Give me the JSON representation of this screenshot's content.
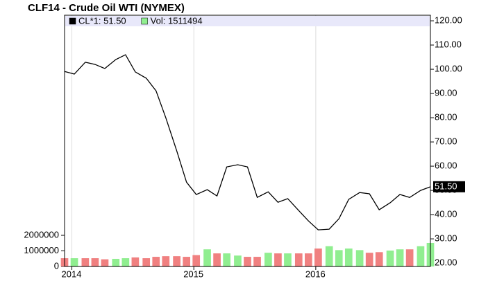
{
  "chart_data": {
    "type": "line",
    "title": "CLF14 - Crude Oil WTI (NYMEX)",
    "x": [
      2013.94,
      2014.02,
      2014.11,
      2014.19,
      2014.27,
      2014.36,
      2014.44,
      2014.52,
      2014.61,
      2014.69,
      2014.77,
      2014.86,
      2014.94,
      2015.02,
      2015.11,
      2015.19,
      2015.27,
      2015.36,
      2015.44,
      2015.52,
      2015.61,
      2015.69,
      2015.77,
      2015.86,
      2015.94,
      2016.02,
      2016.11,
      2016.19,
      2016.27,
      2016.36,
      2016.44,
      2016.52,
      2016.61,
      2016.69,
      2016.77,
      2016.86,
      2016.94
    ],
    "xlim": [
      2013.94,
      2016.94
    ],
    "xticks": [
      2014,
      2015,
      2016
    ],
    "ylim": [
      18.6,
      122.3
    ],
    "yticks": [
      {
        "value": 20,
        "label": "20.00"
      },
      {
        "value": 30,
        "label": "30.00"
      },
      {
        "value": 40,
        "label": "40.00"
      },
      {
        "value": 50,
        "label": "50.00"
      },
      {
        "value": 60,
        "label": "60.00"
      },
      {
        "value": 70,
        "label": "70.00"
      },
      {
        "value": 80,
        "label": "80.00"
      },
      {
        "value": 90,
        "label": "90.00"
      },
      {
        "value": 100,
        "label": "100.00"
      },
      {
        "value": 110,
        "label": "110.00"
      },
      {
        "value": 120,
        "label": "120.00"
      }
    ],
    "y2lim": [
      0,
      16130000
    ],
    "y2ticks": [
      0,
      1000000,
      2000000
    ],
    "last_label": {
      "value": 51.5,
      "label": "51.50"
    },
    "series": [
      {
        "name": "CL*1: 51.50",
        "color": "#000000",
        "values": [
          99.1,
          98.0,
          102.9,
          102.0,
          100.3,
          104.0,
          106.0,
          98.9,
          96.3,
          91.1,
          80.0,
          66.3,
          53.4,
          48.3,
          50.3,
          47.7,
          59.7,
          60.6,
          59.7,
          47.1,
          49.4,
          45.1,
          46.6,
          41.7,
          37.4,
          33.7,
          34.0,
          38.3,
          46.3,
          49.1,
          48.6,
          42.0,
          44.9,
          48.3,
          47.1,
          50.0,
          51.5
        ]
      },
      {
        "name": "Vol: 1511494",
        "color": "#90ee90",
        "axis": "y2",
        "type": "bar",
        "values": [
          530000,
          530000,
          530000,
          530000,
          460000,
          490000,
          530000,
          580000,
          530000,
          620000,
          660000,
          660000,
          620000,
          730000,
          1100000,
          840000,
          840000,
          700000,
          620000,
          620000,
          880000,
          840000,
          840000,
          840000,
          840000,
          1150000,
          1300000,
          1050000,
          1150000,
          1050000,
          880000,
          920000,
          1020000,
          1100000,
          1100000,
          1300000,
          1511494
        ],
        "colors": [
          "#f08080",
          "#90ee90",
          "#f08080",
          "#f08080",
          "#f08080",
          "#90ee90",
          "#90ee90",
          "#f08080",
          "#f08080",
          "#f08080",
          "#f08080",
          "#f08080",
          "#f08080",
          "#f08080",
          "#90ee90",
          "#f08080",
          "#90ee90",
          "#90ee90",
          "#f08080",
          "#f08080",
          "#90ee90",
          "#f08080",
          "#90ee90",
          "#f08080",
          "#f08080",
          "#f08080",
          "#90ee90",
          "#90ee90",
          "#90ee90",
          "#90ee90",
          "#f08080",
          "#f08080",
          "#90ee90",
          "#90ee90",
          "#f08080",
          "#90ee90",
          "#90ee90"
        ]
      }
    ],
    "grid": true
  }
}
